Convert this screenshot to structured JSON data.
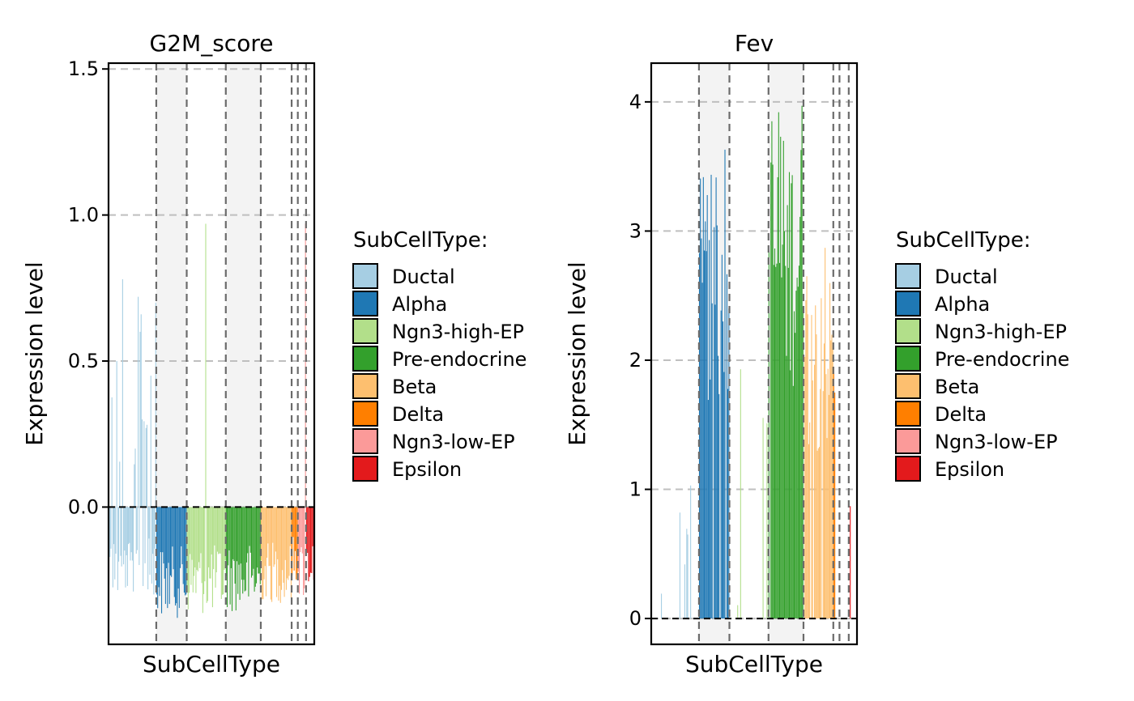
{
  "chart_data": [
    {
      "type": "bar",
      "title": "G2M_score",
      "xlabel": "SubCellType",
      "ylabel": "Expression level",
      "ylim": [
        -0.47,
        1.52
      ],
      "yticks": [
        0.0,
        0.5,
        1.0,
        1.5
      ],
      "ytick_labels": [
        "0.0",
        "0.5",
        "1.0",
        "1.5"
      ],
      "grid": "horizontal dashed",
      "legend_title": "SubCellType:",
      "legend_position": "right",
      "categories": [
        "Ductal",
        "Alpha",
        "Ngn3-high-EP",
        "Pre-endocrine",
        "Beta",
        "Delta",
        "Ngn3-low-EP",
        "Epsilon"
      ],
      "category_fractions": [
        0.232,
        0.148,
        0.19,
        0.17,
        0.15,
        0.03,
        0.04,
        0.04
      ],
      "series": [
        {
          "category": "Ductal",
          "color": "#A6CEE3",
          "typical_min": -0.3,
          "peaks": [
            0.8,
            0.78,
            0.72,
            0.7,
            0.66,
            0.6,
            0.5,
            0.45,
            0.3
          ]
        },
        {
          "category": "Alpha",
          "color": "#1F78B4",
          "typical_min": -0.38,
          "peaks": [
            0.0
          ]
        },
        {
          "category": "Ngn3-high-EP",
          "color": "#B2DF8A",
          "typical_min": -0.37,
          "peaks": [
            0.97
          ]
        },
        {
          "category": "Pre-endocrine",
          "color": "#33A02C",
          "typical_min": -0.36,
          "peaks": [
            0.0
          ]
        },
        {
          "category": "Beta",
          "color": "#FDBF6F",
          "typical_min": -0.33,
          "peaks": [
            0.0
          ]
        },
        {
          "category": "Delta",
          "color": "#FF7F00",
          "typical_min": -0.28,
          "peaks": [
            0.0
          ]
        },
        {
          "category": "Ngn3-low-EP",
          "color": "#FB9A99",
          "typical_min": -0.32,
          "peaks": [
            0.97
          ]
        },
        {
          "category": "Epsilon",
          "color": "#E31A1C",
          "typical_min": -0.28,
          "peaks": [
            0.0
          ]
        }
      ]
    },
    {
      "type": "bar",
      "title": "Fev",
      "xlabel": "SubCellType",
      "ylabel": "Expression level",
      "ylim": [
        -0.2,
        4.3
      ],
      "yticks": [
        0,
        1,
        2,
        3,
        4
      ],
      "ytick_labels": [
        "0",
        "1",
        "2",
        "3",
        "4"
      ],
      "grid": "horizontal dashed",
      "legend_title": "SubCellType:",
      "legend_position": "right",
      "categories": [
        "Ductal",
        "Alpha",
        "Ngn3-high-EP",
        "Pre-endocrine",
        "Beta",
        "Delta",
        "Ngn3-low-EP",
        "Epsilon"
      ],
      "category_fractions": [
        0.232,
        0.148,
        0.19,
        0.17,
        0.145,
        0.03,
        0.045,
        0.04
      ],
      "series": [
        {
          "category": "Ductal",
          "color": "#A6CEE3",
          "typical_min": 0.0,
          "peaks": [
            1.03,
            0.65
          ]
        },
        {
          "category": "Alpha",
          "color": "#1F78B4",
          "typical_min": 0.0,
          "peaks": [
            3.63,
            3.03,
            2.93,
            2.83,
            2.6,
            2.4,
            2.3
          ]
        },
        {
          "category": "Ngn3-high-EP",
          "color": "#B2DF8A",
          "typical_min": 0.0,
          "peaks": [
            1.93
          ]
        },
        {
          "category": "Pre-endocrine",
          "color": "#33A02C",
          "typical_min": 0.0,
          "peaks": [
            3.97,
            3.92,
            3.85,
            3.73,
            3.37,
            3.2,
            3.0,
            2.73
          ]
        },
        {
          "category": "Beta",
          "color": "#FDBF6F",
          "typical_min": 0.0,
          "peaks": [
            2.87,
            2.65,
            2.48,
            2.35,
            2.2
          ]
        },
        {
          "category": "Delta",
          "color": "#FF7F00",
          "typical_min": 0.0,
          "peaks": [
            1.95,
            1.75
          ]
        },
        {
          "category": "Ngn3-low-EP",
          "color": "#FB9A99",
          "typical_min": 0.0,
          "peaks": [
            0.0
          ]
        },
        {
          "category": "Epsilon",
          "color": "#E31A1C",
          "typical_min": 0.0,
          "peaks": [
            0.87
          ]
        }
      ]
    }
  ]
}
